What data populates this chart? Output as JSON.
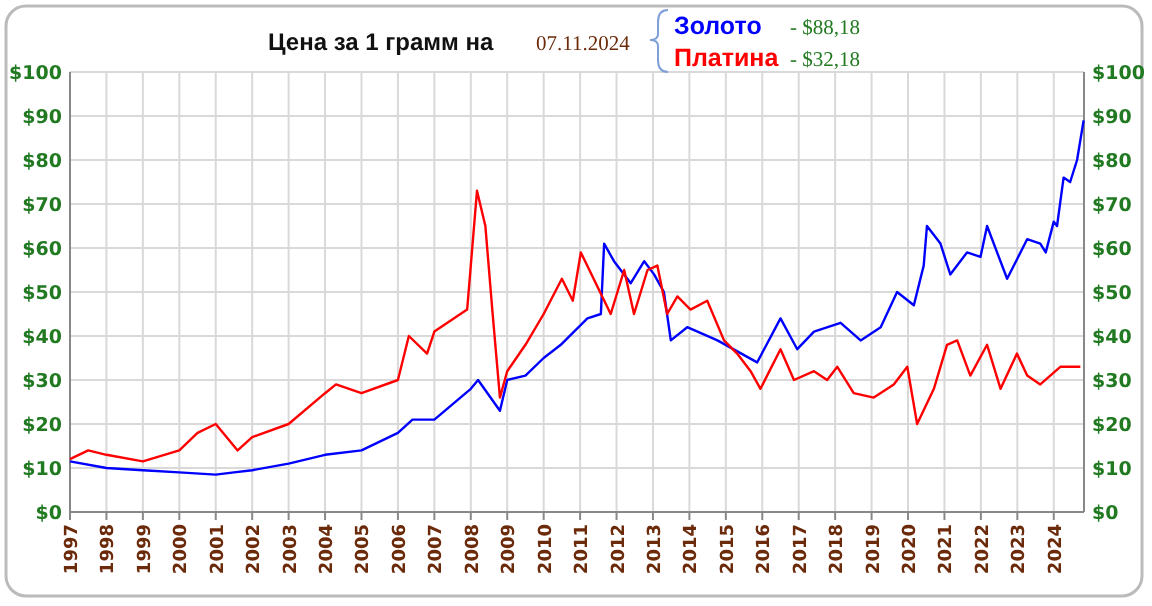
{
  "chart_data": {
    "type": "line",
    "title": "Цена за 1 грамм на",
    "subtitle": "07.11.2024",
    "annotations": [
      "- $88,18",
      "- $32,18"
    ],
    "legend": "top",
    "grid": true,
    "line_style": "solid",
    "xlim": [
      1997,
      2024.83
    ],
    "xticks": [
      1997,
      1998,
      1999,
      2000,
      2001,
      2002,
      2003,
      2004,
      2005,
      2006,
      2007,
      2008,
      2009,
      2010,
      2011,
      2012,
      2013,
      2014,
      2015,
      2016,
      2017,
      2018,
      2019,
      2020,
      2021,
      2022,
      2023,
      2024
    ],
    "ylim": [
      0,
      100
    ],
    "yticks": [
      {
        "value": 0,
        "label": "$0"
      },
      {
        "value": 10,
        "label": "$10"
      },
      {
        "value": 20,
        "label": "$20"
      },
      {
        "value": 30,
        "label": "$30"
      },
      {
        "value": 40,
        "label": "$40"
      },
      {
        "value": 50,
        "label": "$50"
      },
      {
        "value": 60,
        "label": "$60"
      },
      {
        "value": 70,
        "label": "$70"
      },
      {
        "value": 80,
        "label": "$80"
      },
      {
        "value": 90,
        "label": "$90"
      },
      {
        "value": 100,
        "label": "$100"
      }
    ],
    "y2lim": [
      0,
      100
    ],
    "y2ticks": [
      {
        "value": 0,
        "label": "$0"
      },
      {
        "value": 10,
        "label": "$10"
      },
      {
        "value": 20,
        "label": "$20"
      },
      {
        "value": 30,
        "label": "$30"
      },
      {
        "value": 40,
        "label": "$40"
      },
      {
        "value": 50,
        "label": "$50"
      },
      {
        "value": 60,
        "label": "$60"
      },
      {
        "value": 70,
        "label": "$70"
      },
      {
        "value": 80,
        "label": "$80"
      },
      {
        "value": 90,
        "label": "$90"
      },
      {
        "value": 100,
        "label": "$100"
      }
    ],
    "series": [
      {
        "name": "Золото",
        "color": "#0000ff",
        "x": [
          1997,
          1998,
          1999,
          2000,
          2001,
          2001.5,
          2002,
          2003,
          2004,
          2005,
          2006,
          2006.4,
          2007,
          2008,
          2008.2,
          2008.8,
          2009,
          2009.5,
          2010,
          2010.47,
          2011.2,
          2011.57,
          2011.66,
          2011.93,
          2012.39,
          2012.76,
          2013.03,
          2013.3,
          2013.49,
          2013.94,
          2014.77,
          2015.86,
          2016.5,
          2016.96,
          2017.42,
          2018.15,
          2018.7,
          2019.25,
          2019.7,
          2020.16,
          2020.43,
          2020.52,
          2020.89,
          2021.16,
          2021.62,
          2021.99,
          2022.17,
          2022.72,
          2023.27,
          2023.63,
          2023.78,
          2024.0,
          2024.09,
          2024.27,
          2024.45,
          2024.64,
          2024.82
        ],
        "values": [
          11.5,
          10,
          9.5,
          9,
          8.5,
          9,
          9.5,
          11,
          13,
          14,
          18,
          21,
          21,
          28,
          30,
          23,
          30,
          31,
          35,
          38,
          44,
          45,
          61,
          57,
          52,
          57,
          54,
          50,
          39,
          42,
          39,
          34,
          44,
          37,
          41,
          43,
          39,
          42,
          50,
          47,
          56,
          65,
          61,
          54,
          59,
          58,
          65,
          53,
          62,
          61,
          59,
          66,
          65,
          76,
          75,
          80,
          89
        ]
      },
      {
        "name": "Платина",
        "color": "#ff0000",
        "x": [
          1997,
          1997.5,
          1998,
          1999,
          2000,
          2000.5,
          2001,
          2001.6,
          2002,
          2003,
          2004,
          2004.3,
          2005,
          2006,
          2006.3,
          2006.8,
          2007,
          2007.9,
          2008.17,
          2008.4,
          2008.6,
          2008.8,
          2009,
          2009.5,
          2010,
          2010.5,
          2010.8,
          2011.02,
          2011.84,
          2012.21,
          2012.48,
          2012.85,
          2013.12,
          2013.39,
          2013.67,
          2014.03,
          2014.49,
          2014.95,
          2015.31,
          2015.68,
          2015.95,
          2016.5,
          2016.87,
          2017.42,
          2017.78,
          2018.06,
          2018.51,
          2019.06,
          2019.61,
          2019.98,
          2020.25,
          2020.71,
          2021.07,
          2021.35,
          2021.71,
          2022.17,
          2022.54,
          2022.99,
          2023.27,
          2023.63,
          2024.18,
          2024.73
        ],
        "values": [
          12,
          14,
          13,
          11.5,
          14,
          18,
          20,
          14,
          17,
          20,
          27,
          29,
          27,
          30,
          40,
          36,
          41,
          46,
          73,
          65,
          45,
          26,
          32,
          38,
          45,
          53,
          48,
          59,
          45,
          55,
          45,
          55,
          56,
          45,
          49,
          46,
          48,
          39,
          36,
          32,
          28,
          37,
          30,
          32,
          30,
          33,
          27,
          26,
          29,
          33,
          20,
          28,
          38,
          39,
          31,
          38,
          28,
          36,
          31,
          29,
          33,
          33
        ]
      }
    ]
  }
}
